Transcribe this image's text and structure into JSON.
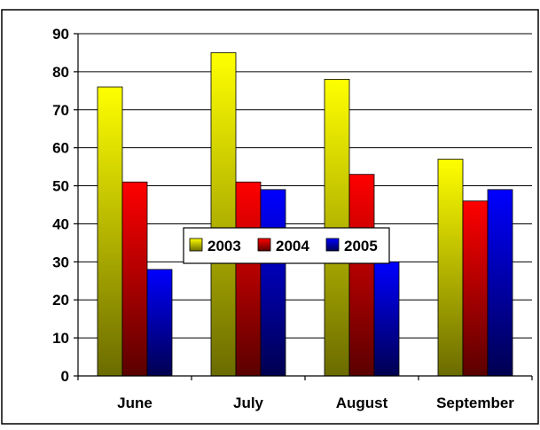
{
  "chart_data": {
    "type": "bar",
    "title": "",
    "xlabel": "",
    "ylabel": "",
    "categories": [
      "June",
      "July",
      "August",
      "September"
    ],
    "series": [
      {
        "name": "2003",
        "values": [
          76,
          85,
          78,
          57
        ],
        "color_top": "#ffff00",
        "color_bottom": "#6b6b00"
      },
      {
        "name": "2004",
        "values": [
          51,
          51,
          53,
          46
        ],
        "color_top": "#ff0000",
        "color_bottom": "#5a0000"
      },
      {
        "name": "2005",
        "values": [
          28,
          49,
          30,
          49
        ],
        "color_top": "#0000ff",
        "color_bottom": "#000050"
      }
    ],
    "ylim": [
      0,
      90
    ],
    "yticks": [
      "0",
      "10",
      "20",
      "30",
      "40",
      "50",
      "60",
      "70",
      "80",
      "90"
    ],
    "legend_position": "center",
    "grid": "horizontal"
  }
}
